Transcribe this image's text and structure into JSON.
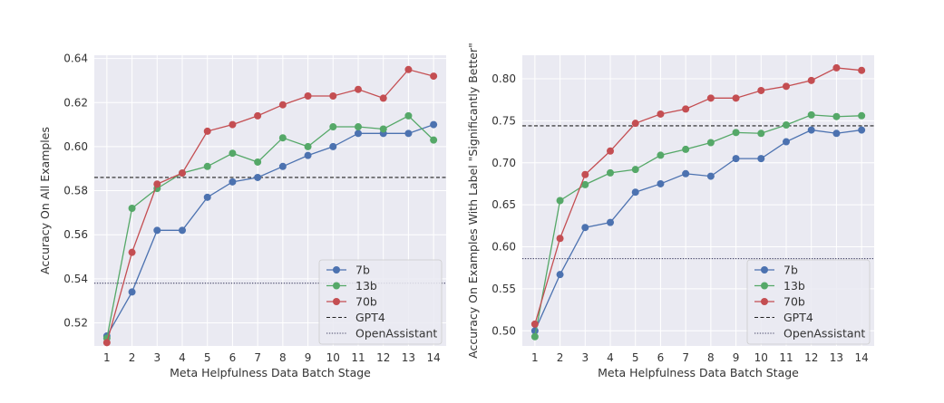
{
  "chart_data": [
    {
      "type": "line",
      "xlabel": "Meta Helpfulness Data Batch Stage",
      "ylabel": "Accuracy On All Examples",
      "x": [
        1,
        2,
        3,
        4,
        5,
        6,
        7,
        8,
        9,
        10,
        11,
        12,
        13,
        14
      ],
      "xticks": [
        "1",
        "2",
        "3",
        "4",
        "5",
        "6",
        "7",
        "8",
        "9",
        "10",
        "11",
        "12",
        "13",
        "14"
      ],
      "yticks": [
        "0.52",
        "0.54",
        "0.56",
        "0.58",
        "0.60",
        "0.62",
        "0.64"
      ],
      "ylim": [
        0.5095,
        0.6415
      ],
      "grid": true,
      "legend_position": "lower-right",
      "series": [
        {
          "name": "7b",
          "color": "#4c72b0",
          "values": [
            0.514,
            0.534,
            0.562,
            0.562,
            0.577,
            0.584,
            0.586,
            0.591,
            0.596,
            0.6,
            0.606,
            0.606,
            0.606,
            0.61
          ]
        },
        {
          "name": "13b",
          "color": "#55a868",
          "values": [
            0.513,
            0.572,
            0.581,
            0.588,
            0.591,
            0.597,
            0.593,
            0.604,
            0.6,
            0.609,
            0.609,
            0.608,
            0.614,
            0.603
          ]
        },
        {
          "name": "70b",
          "color": "#c44e52",
          "values": [
            0.511,
            0.552,
            0.583,
            0.588,
            0.607,
            0.61,
            0.614,
            0.619,
            0.623,
            0.623,
            0.626,
            0.622,
            0.635,
            0.632
          ]
        }
      ],
      "reference_lines": [
        {
          "name": "GPT4",
          "value": 0.586,
          "style": "dashed",
          "color": "#222222"
        },
        {
          "name": "OpenAssistant",
          "value": 0.538,
          "style": "dotted",
          "color": "#444466"
        }
      ]
    },
    {
      "type": "line",
      "xlabel": "Meta Helpfulness Data Batch Stage",
      "ylabel": "Accuracy On Examples With Label \"Significantly Better\"",
      "x": [
        1,
        2,
        3,
        4,
        5,
        6,
        7,
        8,
        9,
        10,
        11,
        12,
        13,
        14
      ],
      "xticks": [
        "1",
        "2",
        "3",
        "4",
        "5",
        "6",
        "7",
        "8",
        "9",
        "10",
        "11",
        "12",
        "13",
        "14"
      ],
      "yticks": [
        "0.50",
        "0.55",
        "0.60",
        "0.65",
        "0.70",
        "0.75",
        "0.80"
      ],
      "ylim": [
        0.482,
        0.828
      ],
      "grid": true,
      "legend_position": "lower-right",
      "series": [
        {
          "name": "7b",
          "color": "#4c72b0",
          "values": [
            0.5,
            0.567,
            0.623,
            0.629,
            0.665,
            0.675,
            0.687,
            0.684,
            0.705,
            0.705,
            0.725,
            0.739,
            0.735,
            0.739
          ]
        },
        {
          "name": "13b",
          "color": "#55a868",
          "values": [
            0.493,
            0.655,
            0.674,
            0.688,
            0.692,
            0.709,
            0.716,
            0.724,
            0.736,
            0.735,
            0.745,
            0.757,
            0.755,
            0.756
          ]
        },
        {
          "name": "70b",
          "color": "#c44e52",
          "values": [
            0.508,
            0.61,
            0.686,
            0.714,
            0.747,
            0.758,
            0.764,
            0.777,
            0.777,
            0.786,
            0.791,
            0.798,
            0.813,
            0.81
          ]
        }
      ],
      "reference_lines": [
        {
          "name": "GPT4",
          "value": 0.744,
          "style": "dashed",
          "color": "#222222"
        },
        {
          "name": "OpenAssistant",
          "value": 0.586,
          "style": "dotted",
          "color": "#444466"
        }
      ]
    }
  ]
}
